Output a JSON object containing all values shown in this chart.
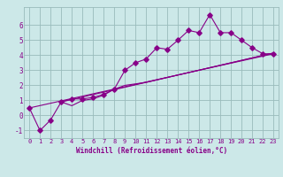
{
  "xlabel": "Windchill (Refroidissement éolien,°C)",
  "bg_color": "#cce8e8",
  "grid_color": "#99bbbb",
  "line_color": "#880088",
  "xlim": [
    -0.5,
    23.5
  ],
  "ylim": [
    -1.5,
    7.2
  ],
  "xticks": [
    0,
    1,
    2,
    3,
    4,
    5,
    6,
    7,
    8,
    9,
    10,
    11,
    12,
    13,
    14,
    15,
    16,
    17,
    18,
    19,
    20,
    21,
    22,
    23
  ],
  "yticks": [
    -1,
    0,
    1,
    2,
    3,
    4,
    5,
    6
  ],
  "line1_x": [
    0,
    1,
    2,
    3,
    4,
    5,
    6,
    7,
    8,
    9,
    10,
    11,
    12,
    13,
    14,
    15,
    16,
    17,
    18,
    19,
    20,
    21,
    22,
    23
  ],
  "line1_y": [
    0.5,
    -1.0,
    -0.3,
    0.9,
    1.1,
    1.1,
    1.2,
    1.4,
    1.75,
    3.0,
    3.5,
    3.75,
    4.5,
    4.4,
    5.0,
    5.65,
    5.5,
    6.7,
    5.5,
    5.5,
    5.0,
    4.5,
    4.1,
    4.1
  ],
  "line2_x": [
    3,
    4,
    5,
    6,
    7,
    8,
    9,
    10,
    11,
    23
  ],
  "line2_y": [
    0.9,
    0.65,
    1.0,
    1.1,
    1.35,
    1.75,
    2.0,
    2.1,
    2.2,
    4.15
  ],
  "line3_x": [
    3,
    23
  ],
  "line3_y": [
    0.9,
    4.15
  ],
  "line4_x": [
    0,
    23
  ],
  "line4_y": [
    0.5,
    4.1
  ]
}
